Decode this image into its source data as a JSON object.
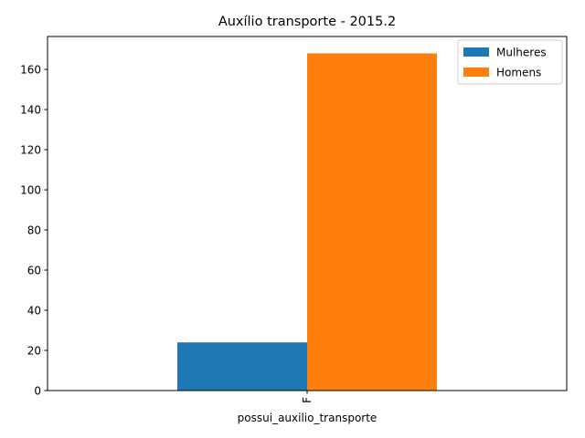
{
  "chart_data": {
    "type": "bar",
    "title": "Auxílio transporte - 2015.2",
    "xlabel": "possui_auxilio_transporte",
    "ylabel": "",
    "categories": [
      "F"
    ],
    "series": [
      {
        "name": "Mulheres",
        "values": [
          24
        ],
        "color": "#1f77b4"
      },
      {
        "name": "Homens",
        "values": [
          168
        ],
        "color": "#ff7f0e"
      }
    ],
    "ylim": [
      0,
      176.4
    ],
    "yticks": [
      0,
      20,
      40,
      60,
      80,
      100,
      120,
      140,
      160
    ],
    "grid": false,
    "legend": "top-right"
  }
}
